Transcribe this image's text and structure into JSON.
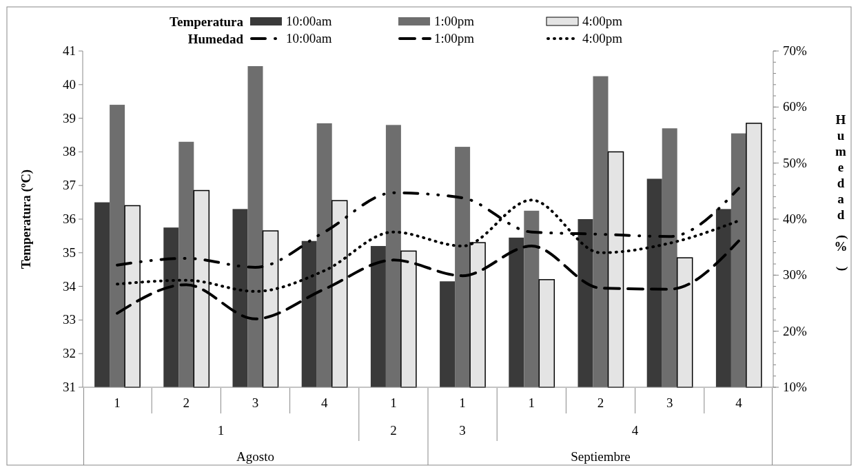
{
  "chart_data": {
    "type": "bar",
    "ylabel": "Temperatura (ºC)",
    "y2label": "Humedad (%)",
    "categories": [
      "1",
      "2",
      "3",
      "4",
      "1",
      "1",
      "1",
      "2",
      "3",
      "4"
    ],
    "annotations": [
      "Temperatura",
      "Humedad",
      "1",
      "2",
      "3",
      "4",
      "Agosto",
      "Septiembre"
    ],
    "series": [
      {
        "name": "10:00am",
        "color": "#3a3a3a",
        "values": [
          36.5,
          35.75,
          36.3,
          35.35,
          35.2,
          34.15,
          35.45,
          36.0,
          37.2,
          36.3
        ]
      },
      {
        "name": "1:00pm",
        "color": "#6e6e6e",
        "values": [
          39.4,
          38.3,
          40.55,
          38.85,
          38.8,
          38.15,
          36.25,
          40.25,
          38.7,
          38.55
        ]
      },
      {
        "name": "4:00pm",
        "color": "#e4e4e4",
        "values": [
          36.4,
          36.85,
          35.65,
          36.55,
          35.05,
          35.3,
          34.2,
          38.0,
          34.85,
          38.85
        ]
      },
      {
        "name": "10:00am",
        "type": "line",
        "axis": "y2",
        "color": "#000000",
        "line_style": "dashdot",
        "values": [
          31.8,
          33.0,
          31.4,
          37.7,
          44.7,
          43.8,
          37.7,
          37.3,
          36.9,
          45.5
        ]
      },
      {
        "name": "1:00pm",
        "type": "line",
        "axis": "y2",
        "color": "#000000",
        "line_style": "dashed",
        "values": [
          23.2,
          28.3,
          22.2,
          27.5,
          32.7,
          29.9,
          35.2,
          27.7,
          27.5,
          36.1
        ]
      },
      {
        "name": "4:00pm",
        "type": "line",
        "axis": "y2",
        "color": "#000000",
        "line_style": "dotted",
        "values": [
          28.4,
          29.1,
          27.1,
          30.8,
          37.7,
          35.2,
          43.4,
          34.0,
          35.7,
          39.7
        ]
      }
    ],
    "ylim": [
      31,
      41
    ],
    "yticks": [
      31,
      32,
      33,
      34,
      35,
      36,
      37,
      38,
      39,
      40,
      41
    ],
    "y2lim": [
      10,
      70
    ],
    "y2ticks": [
      {
        "value": 10,
        "label": "10%"
      },
      {
        "value": 20,
        "label": "20%"
      },
      {
        "value": 30,
        "label": "30%"
      },
      {
        "value": 40,
        "label": "40%"
      },
      {
        "value": 50,
        "label": "50%"
      },
      {
        "value": 60,
        "label": "60%"
      },
      {
        "value": 70,
        "label": "70%"
      }
    ],
    "legend": "top",
    "grid": false
  }
}
